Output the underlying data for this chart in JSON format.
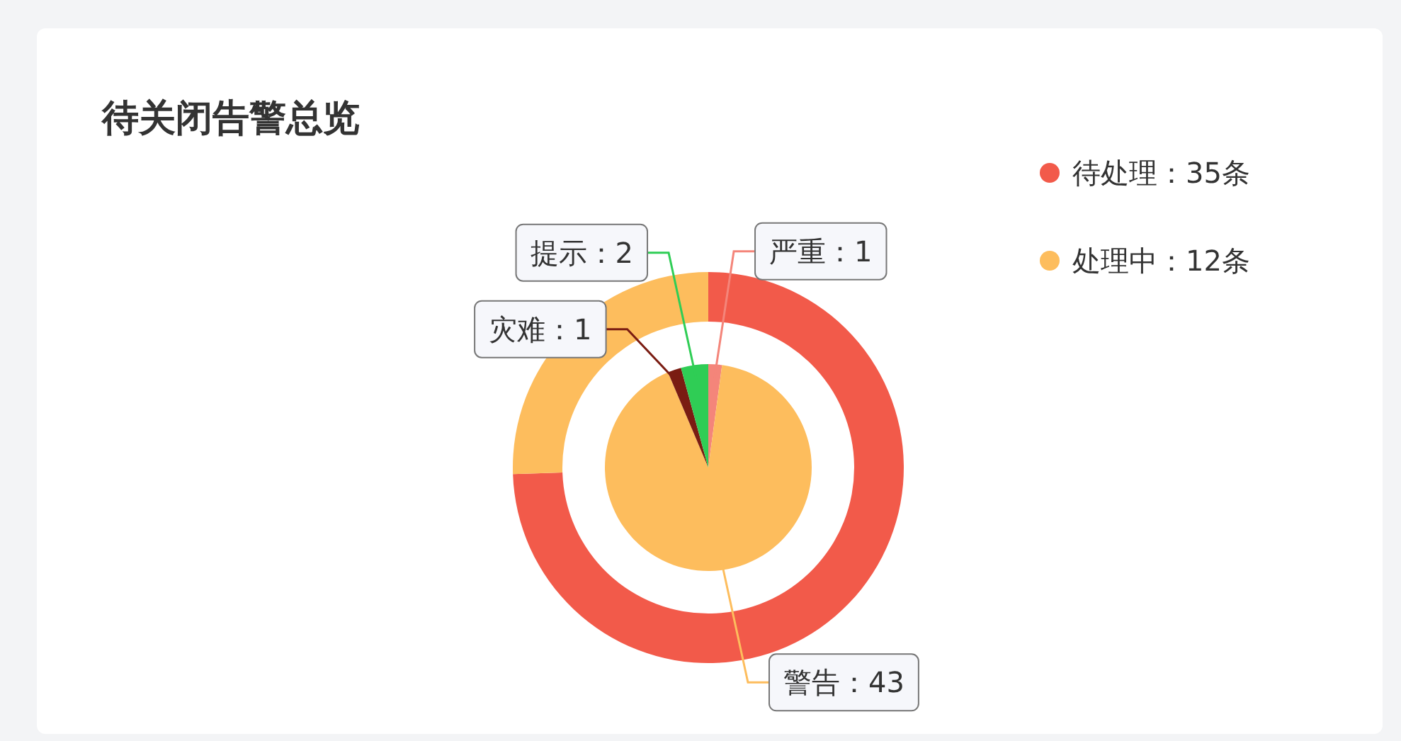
{
  "chart_data": [
    {
      "type": "donut",
      "title": "待关闭告警总览",
      "categories": [
        "待处理",
        "处理中"
      ],
      "values": [
        35,
        12
      ],
      "value_labels": [
        "35条",
        "12条"
      ],
      "colors": [
        "#f25a4a",
        "#fdbd5d"
      ],
      "legend": "top right"
    },
    {
      "type": "pie",
      "categories": [
        "严重",
        "警告",
        "灾难",
        "提示"
      ],
      "values": [
        1,
        43,
        1,
        2
      ],
      "colors": [
        "#f4857a",
        "#fdbd5d",
        "#7a1c12",
        "#2fcd55"
      ],
      "value_labels": [
        "：1",
        "：43",
        "：1",
        "：2"
      ],
      "legend": false
    }
  ]
}
